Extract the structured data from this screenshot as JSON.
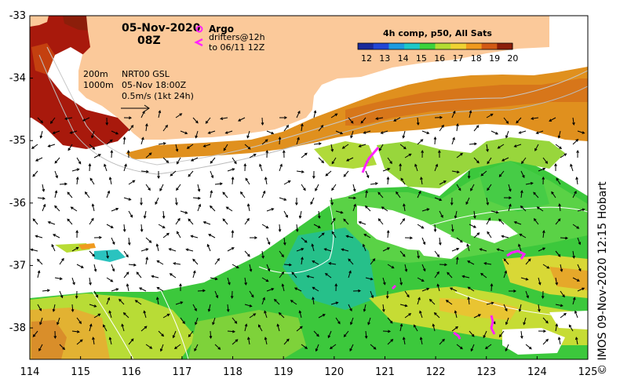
{
  "header": {
    "date": "05-Nov-2020",
    "hour": "08Z"
  },
  "legend_argo": {
    "argo_label": "Argo",
    "drifters_line1": "drifters@12h",
    "drifters_line2": "to 06/11 12Z"
  },
  "scale_info": {
    "depth_200": "200m",
    "depth_1000": "1000m",
    "model_name": "NRT00 GSL",
    "model_time": "05-Nov 18:00Z",
    "speed_scale": "0.5m/s (1kt 24h)"
  },
  "colorbar": {
    "title": "4h comp, p50, All Sats",
    "tick_labels": [
      "12",
      "13",
      "14",
      "15",
      "16",
      "17",
      "18",
      "19",
      "20"
    ],
    "colors": [
      "#1a2a9a",
      "#2346d6",
      "#1e9be0",
      "#1ec8c8",
      "#3cd23c",
      "#b4dc32",
      "#f0d232",
      "#f09a1e",
      "#d25a14",
      "#8c1e0a"
    ]
  },
  "axes": {
    "x_ticks": [
      "114",
      "115",
      "116",
      "117",
      "118",
      "119",
      "120",
      "121",
      "122",
      "123",
      "124",
      "125"
    ],
    "y_ticks": [
      "-33",
      "-34",
      "-35",
      "-36",
      "-37",
      "-38"
    ]
  },
  "credit": "© IMOS 09-Nov-2020 12:15 Hobart",
  "colors": {
    "land": "#fbc99a",
    "argo_marker": "#ff22ff",
    "cloud": "#ffffff"
  }
}
